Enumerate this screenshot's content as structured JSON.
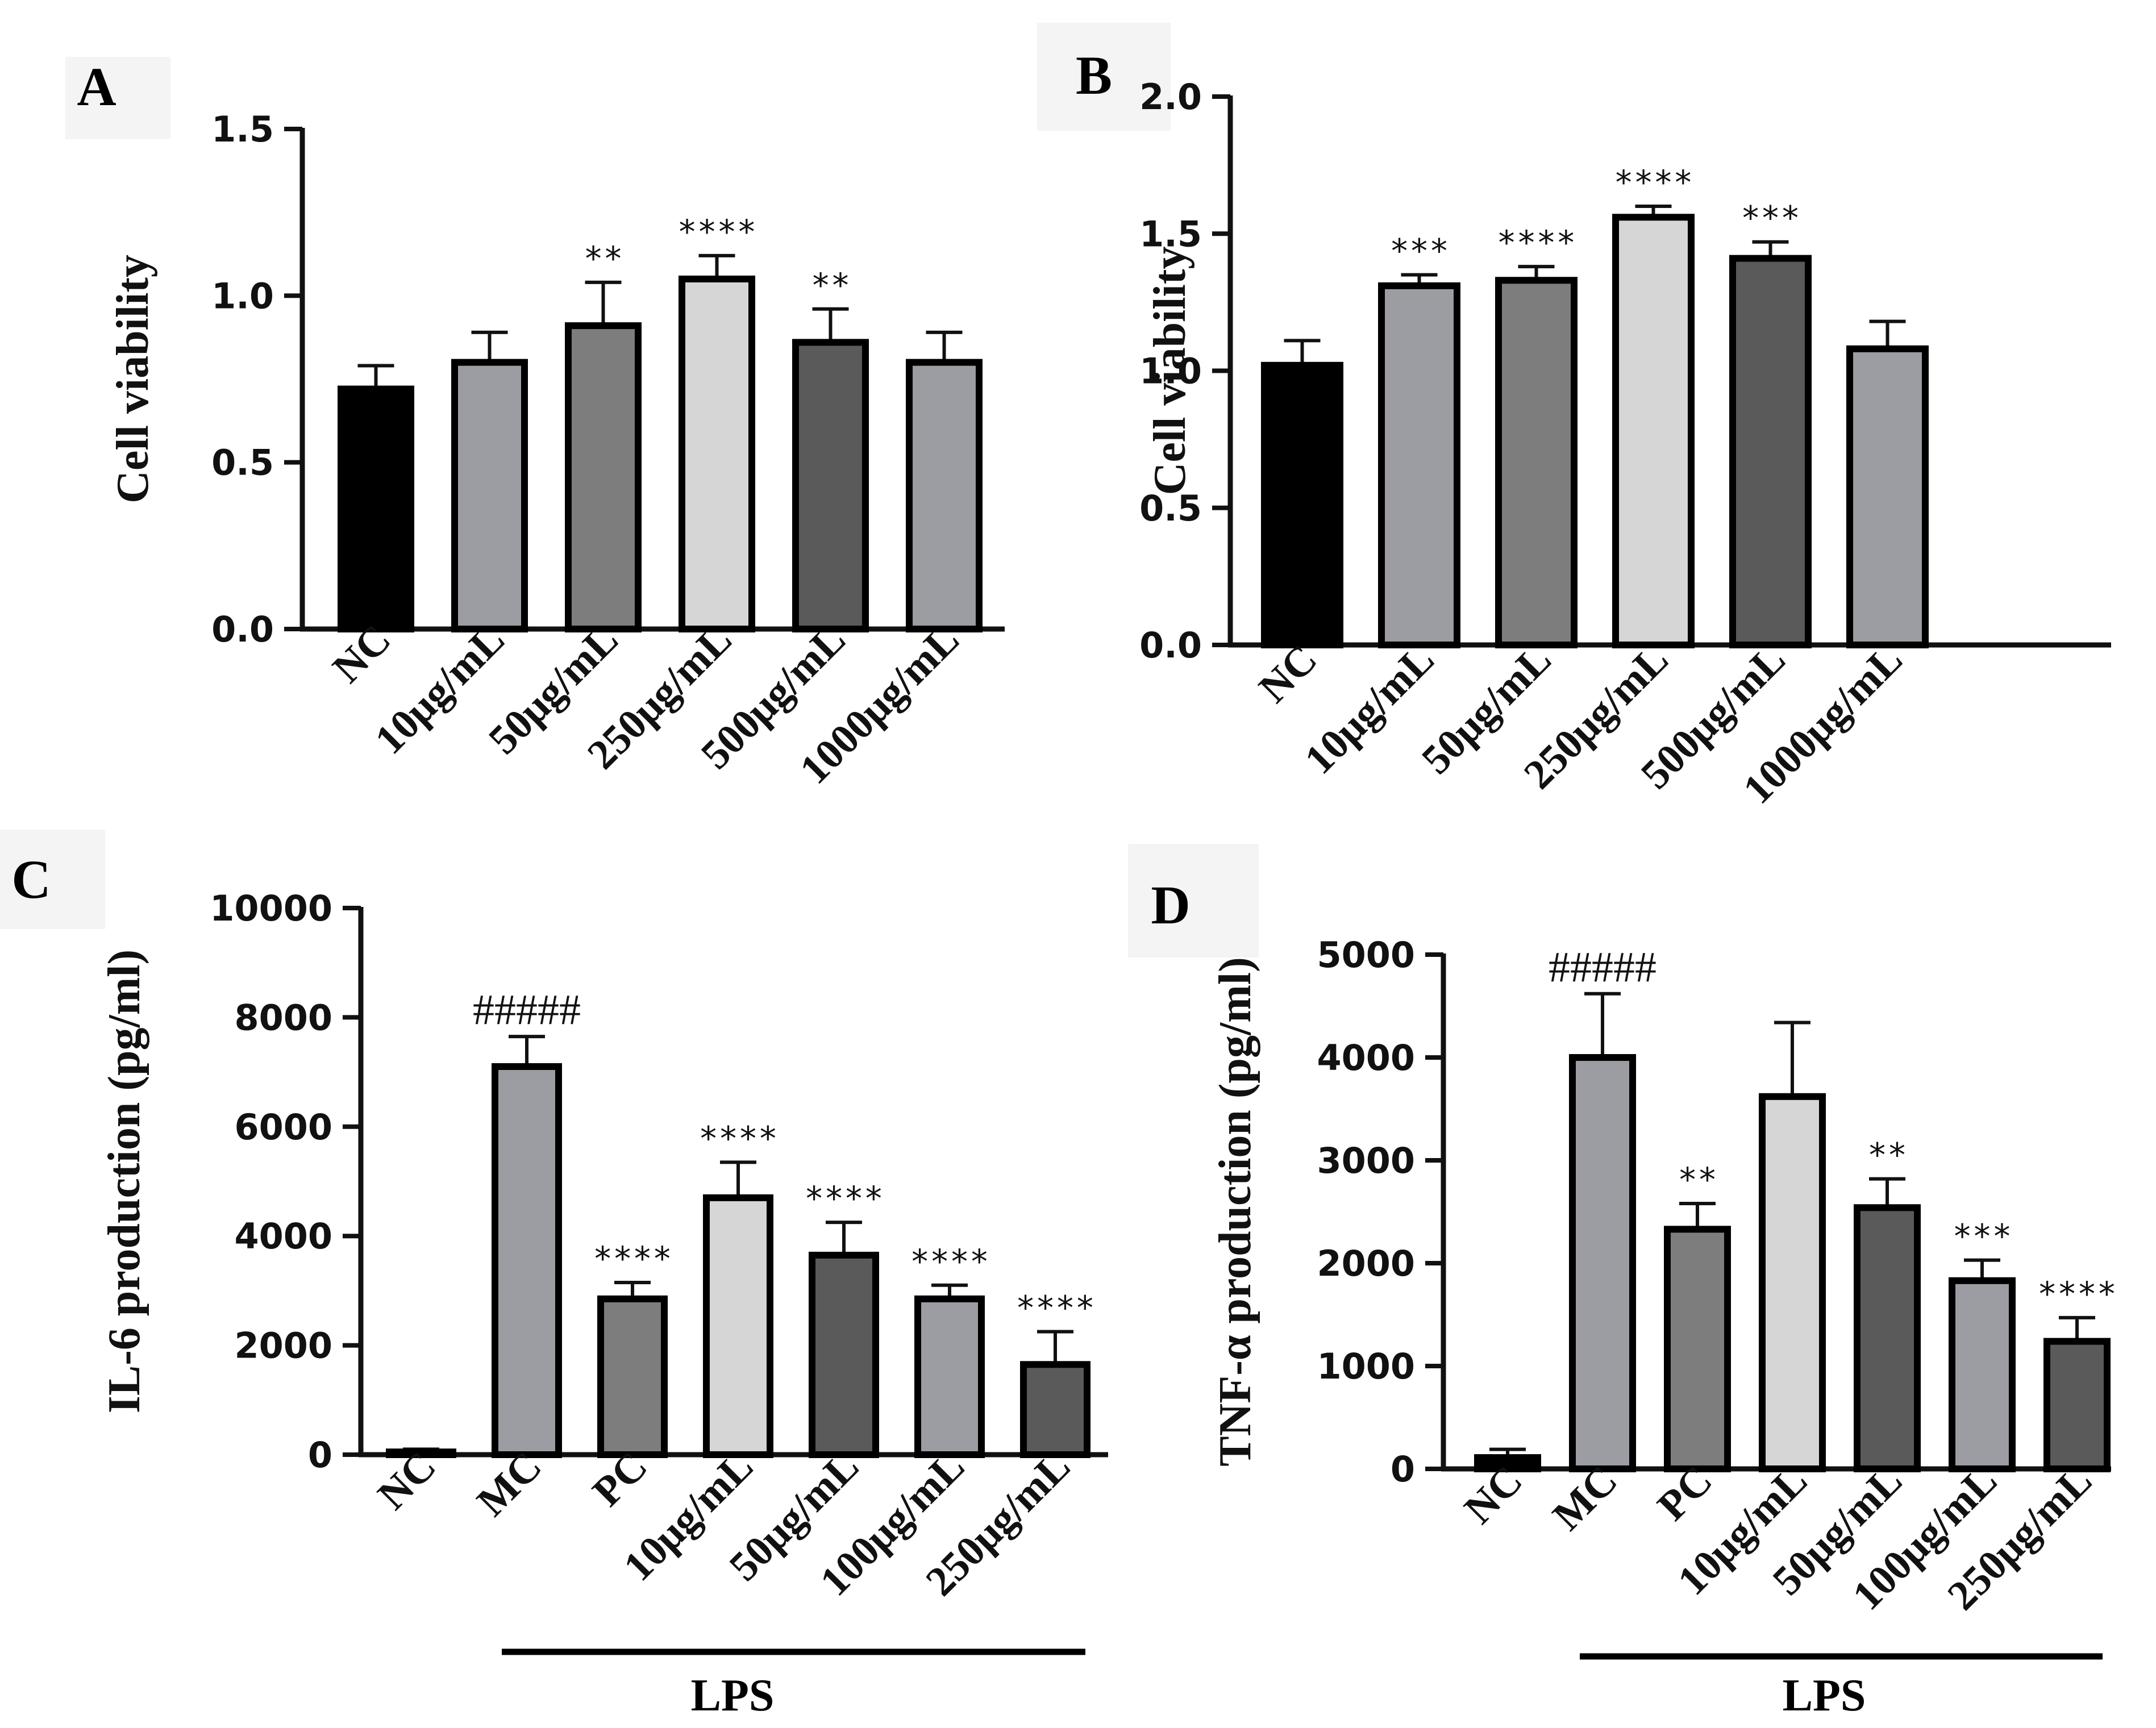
{
  "chart_data": [
    {
      "panel": "A",
      "type": "bar",
      "ylabel": "Cell viability",
      "ylim": [
        0,
        1.5
      ],
      "yticks": [
        "0.0",
        "0.5",
        "1.0",
        "1.5"
      ],
      "categories": [
        "NC",
        "10μg/mL",
        "50μg/mL",
        "250μg/mL",
        "500μg/mL",
        "1000μg/mL"
      ],
      "values": [
        0.72,
        0.8,
        0.91,
        1.05,
        0.86,
        0.8
      ],
      "errors": [
        0.07,
        0.09,
        0.13,
        0.07,
        0.1,
        0.09
      ],
      "significance": [
        "",
        "",
        "**",
        "****",
        "**",
        ""
      ],
      "colors": [
        "#000000",
        "#9c9ca3",
        "#7d7d7d",
        "#d6d6d6",
        "#5a5a5a",
        "#9c9ca3"
      ]
    },
    {
      "panel": "B",
      "type": "bar",
      "ylabel": "Cell viability",
      "ylim": [
        0,
        2.0
      ],
      "yticks": [
        "0.0",
        "0.5",
        "1.0",
        "1.5",
        "2.0"
      ],
      "categories": [
        "NC",
        "10μg/mL",
        "50μg/mL",
        "250μg/mL",
        "500μg/mL",
        "1000μg/mL"
      ],
      "values": [
        1.02,
        1.31,
        1.33,
        1.56,
        1.41,
        1.08
      ],
      "errors": [
        0.09,
        0.04,
        0.05,
        0.04,
        0.06,
        0.1
      ],
      "significance": [
        "",
        "***",
        "****",
        "****",
        "***",
        ""
      ],
      "colors": [
        "#000000",
        "#9c9ca3",
        "#7d7d7d",
        "#d6d6d6",
        "#5a5a5a",
        "#9c9ca3"
      ]
    },
    {
      "panel": "C",
      "type": "bar",
      "ylabel": "IL-6 production (pg/ml)",
      "ylim": [
        0,
        10000
      ],
      "yticks": [
        "0",
        "2000",
        "4000",
        "6000",
        "8000",
        "10000"
      ],
      "categories": [
        "NC",
        "MC",
        "PC",
        "10μg/mL",
        "50μg/mL",
        "100μg/mL",
        "250μg/mL"
      ],
      "values": [
        50,
        7100,
        2850,
        4700,
        3650,
        2850,
        1650
      ],
      "errors": [
        50,
        550,
        300,
        650,
        600,
        250,
        600
      ],
      "significance": [
        "",
        "#####",
        "****",
        "****",
        "****",
        "****",
        "****"
      ],
      "colors": [
        "#000000",
        "#9c9ca3",
        "#7d7d7d",
        "#d6d6d6",
        "#5a5a5a",
        "#9c9ca3",
        "#5a5a5a"
      ],
      "group_label": "LPS"
    },
    {
      "panel": "D",
      "type": "bar",
      "ylabel": "TNF-α production (pg/ml)",
      "ylim": [
        0,
        5000
      ],
      "yticks": [
        "0",
        "1000",
        "2000",
        "3000",
        "4000",
        "5000"
      ],
      "categories": [
        "NC",
        "MC",
        "PC",
        "10μg/mL",
        "50μg/mL",
        "100μg/mL",
        "250μg/mL"
      ],
      "values": [
        110,
        4000,
        2330,
        3620,
        2540,
        1830,
        1240
      ],
      "errors": [
        80,
        620,
        250,
        720,
        280,
        200,
        230
      ],
      "significance": [
        "",
        "#####",
        "**",
        "",
        "**",
        "***",
        "****"
      ],
      "colors": [
        "#000000",
        "#9c9ca3",
        "#7d7d7d",
        "#d6d6d6",
        "#5a5a5a",
        "#9c9ca3",
        "#5a5a5a"
      ],
      "group_label": "LPS"
    }
  ]
}
